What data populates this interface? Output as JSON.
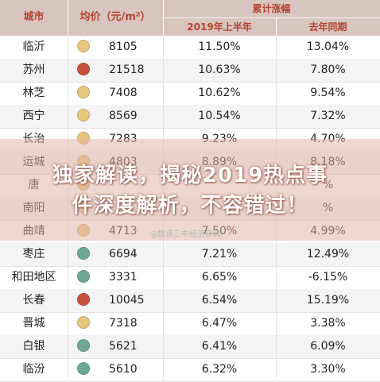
{
  "header": {
    "city": "城市",
    "price": "均价（元/m²）",
    "growth_group": "累计涨幅",
    "col_2019": "2019年上半年",
    "col_prev": "去年同期"
  },
  "rows": [
    {
      "city": "临沂",
      "dot_color": "#e8c67e",
      "price": "8105",
      "h2019": "11.50%",
      "prev": "13.04%"
    },
    {
      "city": "苏州",
      "dot_color": "#c8513c",
      "price": "21518",
      "h2019": "10.63%",
      "prev": "7.80%"
    },
    {
      "city": "林芝",
      "dot_color": "#e8c67e",
      "price": "7408",
      "h2019": "10.62%",
      "prev": "9.54%"
    },
    {
      "city": "西宁",
      "dot_color": "#e8c67e",
      "price": "8569",
      "h2019": "10.54%",
      "prev": "7.32%"
    },
    {
      "city": "长治",
      "dot_color": "#e8c67e",
      "price": "7283",
      "h2019": "9.23%",
      "prev": "4.70%"
    },
    {
      "city": "运城",
      "dot_color": "#e8c67e",
      "price": "4803",
      "h2019": "8.89%",
      "prev": "8.18%"
    },
    {
      "city": "唐",
      "dot_color": "#e8c67e",
      "price": "",
      "h2019": "",
      "prev": "%"
    },
    {
      "city": "南阳",
      "dot_color": "#e8c67e",
      "price": "",
      "h2019": "",
      "prev": "%"
    },
    {
      "city": "曲靖",
      "dot_color": "#e8c67e",
      "price": "4713",
      "h2019": "7.50%",
      "prev": "4.99%"
    },
    {
      "city": "枣庄",
      "dot_color": "#6fa796",
      "price": "6694",
      "h2019": "7.21%",
      "prev": "12.49%"
    },
    {
      "city": "和田地区",
      "dot_color": "#6fa796",
      "price": "3331",
      "h2019": "6.65%",
      "prev": "-6.15%"
    },
    {
      "city": "长春",
      "dot_color": "#c8513c",
      "price": "10045",
      "h2019": "6.54%",
      "prev": "15.19%"
    },
    {
      "city": "晋城",
      "dot_color": "#e8c67e",
      "price": "7318",
      "h2019": "6.47%",
      "prev": "3.38%"
    },
    {
      "city": "白银",
      "dot_color": "#6fa796",
      "price": "5621",
      "h2019": "6.41%",
      "prev": "6.09%"
    },
    {
      "city": "临汾",
      "dot_color": "#6fa796",
      "price": "5610",
      "h2019": "6.32%",
      "prev": "3.30%"
    }
  ],
  "overlay": {
    "line1": "独家解读，揭秘2019热点事",
    "line2": "件深度解析，不容错过！",
    "watermark": "@数读三中经济新闻"
  }
}
